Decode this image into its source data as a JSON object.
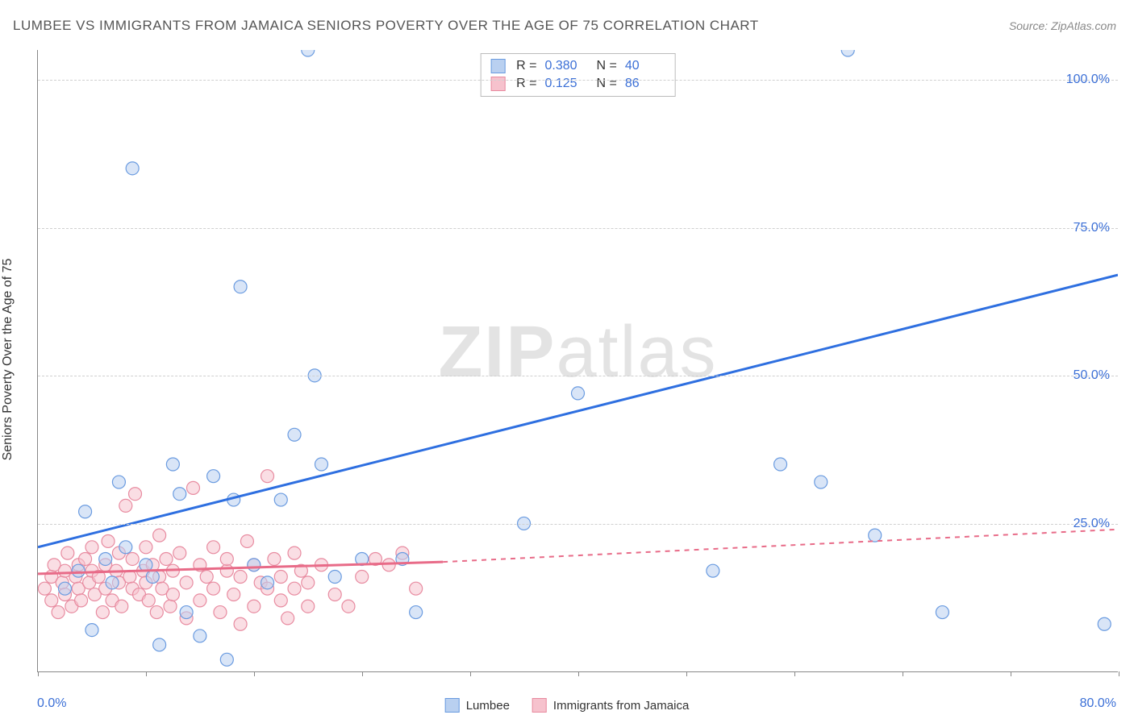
{
  "title": "LUMBEE VS IMMIGRANTS FROM JAMAICA SENIORS POVERTY OVER THE AGE OF 75 CORRELATION CHART",
  "source": "Source: ZipAtlas.com",
  "watermark": {
    "bold": "ZIP",
    "rest": "atlas"
  },
  "y_axis_label": "Seniors Poverty Over the Age of 75",
  "x_range": [
    0,
    80
  ],
  "y_range": [
    0,
    105
  ],
  "x_min_label": "0.0%",
  "x_max_label": "80.0%",
  "y_ticks": [
    {
      "value": 25,
      "label": "25.0%"
    },
    {
      "value": 50,
      "label": "50.0%"
    },
    {
      "value": 75,
      "label": "75.0%"
    },
    {
      "value": 100,
      "label": "100.0%"
    }
  ],
  "x_tick_positions": [
    0,
    8,
    16,
    24,
    32,
    40,
    48,
    56,
    64,
    72,
    80
  ],
  "colors": {
    "series1_fill": "#b9d0f0",
    "series1_stroke": "#6a9be0",
    "series1_line": "#2e6fe0",
    "series2_fill": "#f6c2cd",
    "series2_stroke": "#e88ba0",
    "series2_line": "#e86b88",
    "grid": "#d0d0d0",
    "axis": "#888888",
    "tick_text": "#3b6fd6",
    "text": "#333333"
  },
  "legend": {
    "series1": "Lumbee",
    "series2": "Immigrants from Jamaica"
  },
  "stats": {
    "r_label": "R =",
    "n_label": "N =",
    "series1": {
      "r": "0.380",
      "n": "40"
    },
    "series2": {
      "r": "0.125",
      "n": "86"
    }
  },
  "trend_lines": {
    "series1": {
      "x1": 0,
      "y1": 21,
      "x2": 80,
      "y2": 67
    },
    "series2_solid": {
      "x1": 0,
      "y1": 16.5,
      "x2": 30,
      "y2": 18.5
    },
    "series2_dashed": {
      "x1": 30,
      "y1": 18.5,
      "x2": 80,
      "y2": 24
    }
  },
  "marker_radius": 8,
  "marker_opacity": 0.55,
  "series1_points": [
    [
      2,
      14
    ],
    [
      3,
      17
    ],
    [
      3.5,
      27
    ],
    [
      4,
      7
    ],
    [
      5,
      19
    ],
    [
      5.5,
      15
    ],
    [
      6,
      32
    ],
    [
      6.5,
      21
    ],
    [
      7,
      85
    ],
    [
      8,
      18
    ],
    [
      8.5,
      16
    ],
    [
      9,
      4.5
    ],
    [
      10,
      35
    ],
    [
      10.5,
      30
    ],
    [
      11,
      10
    ],
    [
      12,
      6
    ],
    [
      13,
      33
    ],
    [
      14,
      2
    ],
    [
      14.5,
      29
    ],
    [
      15,
      65
    ],
    [
      16,
      18
    ],
    [
      17,
      15
    ],
    [
      18,
      29
    ],
    [
      19,
      40
    ],
    [
      20,
      105
    ],
    [
      20.5,
      50
    ],
    [
      21,
      35
    ],
    [
      22,
      16
    ],
    [
      24,
      19
    ],
    [
      27,
      19
    ],
    [
      28,
      10
    ],
    [
      36,
      25
    ],
    [
      40,
      47
    ],
    [
      50,
      17
    ],
    [
      55,
      35
    ],
    [
      58,
      32
    ],
    [
      60,
      105
    ],
    [
      62,
      23
    ],
    [
      67,
      10
    ],
    [
      79,
      8
    ]
  ],
  "series2_points": [
    [
      0.5,
      14
    ],
    [
      1,
      16
    ],
    [
      1,
      12
    ],
    [
      1.2,
      18
    ],
    [
      1.5,
      10
    ],
    [
      1.8,
      15
    ],
    [
      2,
      17
    ],
    [
      2,
      13
    ],
    [
      2.2,
      20
    ],
    [
      2.5,
      11
    ],
    [
      2.8,
      16
    ],
    [
      3,
      14
    ],
    [
      3,
      18
    ],
    [
      3.2,
      12
    ],
    [
      3.5,
      19
    ],
    [
      3.8,
      15
    ],
    [
      4,
      17
    ],
    [
      4,
      21
    ],
    [
      4.2,
      13
    ],
    [
      4.5,
      16
    ],
    [
      4.8,
      10
    ],
    [
      5,
      18
    ],
    [
      5,
      14
    ],
    [
      5.2,
      22
    ],
    [
      5.5,
      12
    ],
    [
      5.8,
      17
    ],
    [
      6,
      15
    ],
    [
      6,
      20
    ],
    [
      6.2,
      11
    ],
    [
      6.5,
      28
    ],
    [
      6.8,
      16
    ],
    [
      7,
      14
    ],
    [
      7,
      19
    ],
    [
      7.2,
      30
    ],
    [
      7.5,
      13
    ],
    [
      7.8,
      17
    ],
    [
      8,
      21
    ],
    [
      8,
      15
    ],
    [
      8.2,
      12
    ],
    [
      8.5,
      18
    ],
    [
      8.8,
      10
    ],
    [
      9,
      16
    ],
    [
      9,
      23
    ],
    [
      9.2,
      14
    ],
    [
      9.5,
      19
    ],
    [
      9.8,
      11
    ],
    [
      10,
      17
    ],
    [
      10,
      13
    ],
    [
      10.5,
      20
    ],
    [
      11,
      15
    ],
    [
      11,
      9
    ],
    [
      11.5,
      31
    ],
    [
      12,
      18
    ],
    [
      12,
      12
    ],
    [
      12.5,
      16
    ],
    [
      13,
      21
    ],
    [
      13,
      14
    ],
    [
      13.5,
      10
    ],
    [
      14,
      17
    ],
    [
      14,
      19
    ],
    [
      14.5,
      13
    ],
    [
      15,
      16
    ],
    [
      15,
      8
    ],
    [
      15.5,
      22
    ],
    [
      16,
      18
    ],
    [
      16,
      11
    ],
    [
      16.5,
      15
    ],
    [
      17,
      33
    ],
    [
      17,
      14
    ],
    [
      17.5,
      19
    ],
    [
      18,
      12
    ],
    [
      18,
      16
    ],
    [
      18.5,
      9
    ],
    [
      19,
      20
    ],
    [
      19,
      14
    ],
    [
      19.5,
      17
    ],
    [
      20,
      11
    ],
    [
      20,
      15
    ],
    [
      21,
      18
    ],
    [
      22,
      13
    ],
    [
      23,
      11
    ],
    [
      24,
      16
    ],
    [
      25,
      19
    ],
    [
      26,
      18
    ],
    [
      27,
      20
    ],
    [
      28,
      14
    ]
  ]
}
